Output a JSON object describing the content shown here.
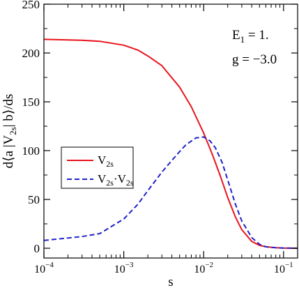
{
  "chart_data": {
    "type": "line",
    "xlabel": "s",
    "ylabel": "d⟨a |V2s| b⟩/ds",
    "xscale": "log",
    "xlim": [
      0.0001,
      0.15
    ],
    "ylim": [
      -10,
      250
    ],
    "yticks": [
      0,
      50,
      100,
      150,
      200,
      250
    ],
    "ytick_labels": [
      "0",
      "50",
      "100",
      "150",
      "200",
      "250"
    ],
    "xticks": [
      0.0001,
      0.001,
      0.01,
      0.1
    ],
    "xtick_labels": [
      {
        "base": "10",
        "exp": "−4"
      },
      {
        "base": "10",
        "exp": "−3"
      },
      {
        "base": "10",
        "exp": "−2"
      },
      {
        "base": "10",
        "exp": "−1"
      }
    ],
    "annotation": {
      "line1": {
        "main": "E",
        "sub": "1",
        "rest": " = 1."
      },
      "line2": "g = −3.0"
    },
    "legend_position": "center-left",
    "series": [
      {
        "name": "V2s",
        "label_main": "V",
        "label_sub": "2s",
        "color": "#e8141c",
        "style": "solid",
        "x": [
          0.0001,
          0.0003,
          0.0005,
          0.001,
          0.0015,
          0.002,
          0.003,
          0.005,
          0.007,
          0.01,
          0.013,
          0.016,
          0.02,
          0.025,
          0.03,
          0.04,
          0.05,
          0.06,
          0.08,
          0.1,
          0.15
        ],
        "y": [
          214,
          213,
          212,
          208,
          203,
          197,
          187,
          165,
          145,
          118,
          95,
          75,
          52,
          32,
          19,
          7,
          3,
          1.5,
          0.5,
          0.2,
          0
        ]
      },
      {
        "name": "V2s·V2s",
        "label_main": "V",
        "label_sub": "2s",
        "label_sep": "·",
        "color": "#1f1fcc",
        "style": "dashed",
        "x": [
          0.0001,
          0.0003,
          0.0005,
          0.001,
          0.0015,
          0.002,
          0.003,
          0.004,
          0.005,
          0.006,
          0.008,
          0.01,
          0.012,
          0.014,
          0.017,
          0.02,
          0.025,
          0.03,
          0.04,
          0.05,
          0.06,
          0.08,
          0.1,
          0.15
        ],
        "y": [
          8,
          12,
          15,
          30,
          45,
          59,
          78,
          90,
          99,
          106,
          113,
          114,
          110,
          103,
          88,
          70,
          45,
          28,
          11,
          4,
          1.5,
          0.5,
          0.2,
          0
        ]
      }
    ]
  }
}
